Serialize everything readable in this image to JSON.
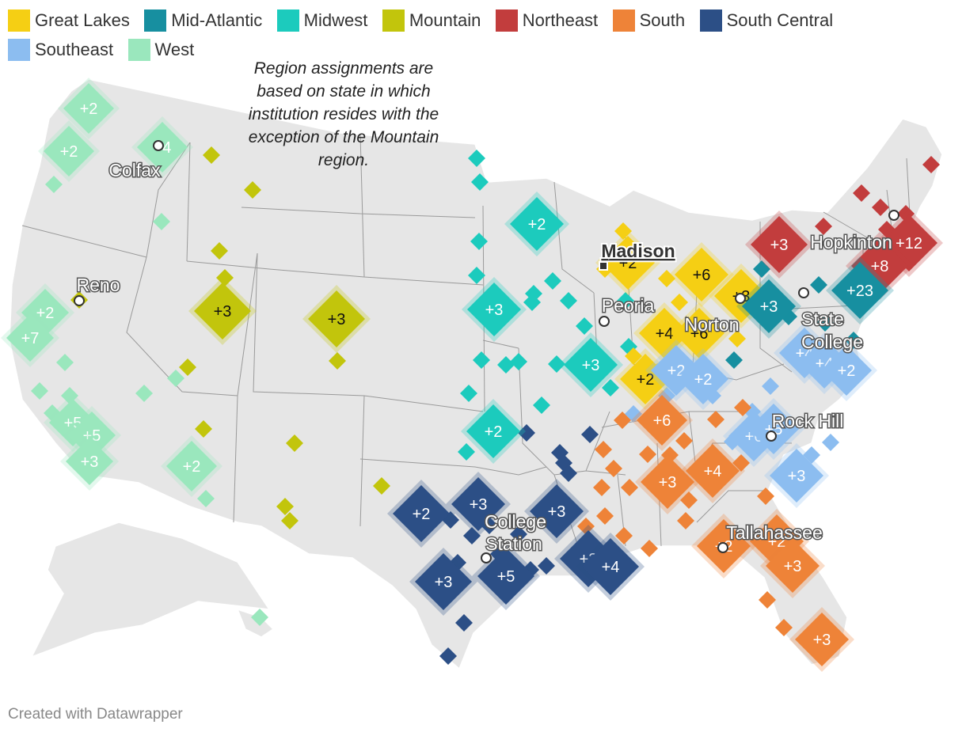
{
  "legend": [
    {
      "label": "Great Lakes",
      "color": "#f5cf14"
    },
    {
      "label": "Mid-Atlantic",
      "color": "#178fa0"
    },
    {
      "label": "Midwest",
      "color": "#1ccbbd"
    },
    {
      "label": "Mountain",
      "color": "#c2c50c"
    },
    {
      "label": "Northeast",
      "color": "#c23d3d"
    },
    {
      "label": "South",
      "color": "#ee8338"
    },
    {
      "label": "South Central",
      "color": "#2c4f86"
    },
    {
      "label": "Southeast",
      "color": "#8cbdf0"
    },
    {
      "label": "West",
      "color": "#9ae7bd"
    }
  ],
  "note": "Region assignments are based on state in which institution resides with the exception of the Mountain region.",
  "footer": "Created with Datawrapper",
  "cities": [
    "Colfax",
    "Reno",
    "Madison",
    "Peoria",
    "Norton",
    "Hopkinton",
    "State College",
    "Rock Hill",
    "Tallahassee",
    "College Station"
  ],
  "clusters": [
    {
      "region": "West",
      "label": "+2"
    },
    {
      "region": "West",
      "label": "+2"
    },
    {
      "region": "West",
      "label": "+4"
    },
    {
      "region": "West",
      "label": "+2"
    },
    {
      "region": "West",
      "label": "+7"
    },
    {
      "region": "West",
      "label": "+5"
    },
    {
      "region": "West",
      "label": "+5"
    },
    {
      "region": "West",
      "label": "+3"
    },
    {
      "region": "West",
      "label": "+2"
    },
    {
      "region": "Mountain",
      "label": "+3"
    },
    {
      "region": "Mountain",
      "label": "+3"
    },
    {
      "region": "Midwest",
      "label": "+2"
    },
    {
      "region": "Midwest",
      "label": "+3"
    },
    {
      "region": "Midwest",
      "label": "+3"
    },
    {
      "region": "Midwest",
      "label": "+2"
    },
    {
      "region": "Great Lakes",
      "label": "+2"
    },
    {
      "region": "Great Lakes",
      "label": "+6"
    },
    {
      "region": "Great Lakes",
      "label": "+3"
    },
    {
      "region": "Great Lakes",
      "label": "+4"
    },
    {
      "region": "Great Lakes",
      "label": "+6"
    },
    {
      "region": "Great Lakes",
      "label": "+2"
    },
    {
      "region": "Northeast",
      "label": "+3"
    },
    {
      "region": "Northeast",
      "label": "+12"
    },
    {
      "region": "Northeast",
      "label": "+8"
    },
    {
      "region": "Mid-Atlantic",
      "label": "+3"
    },
    {
      "region": "Mid-Atlantic",
      "label": "+23"
    },
    {
      "region": "Southeast",
      "label": "+2"
    },
    {
      "region": "Southeast",
      "label": "+2"
    },
    {
      "region": "Southeast",
      "label": "+4"
    },
    {
      "region": "Southeast",
      "label": "+4"
    },
    {
      "region": "Southeast",
      "label": "+2"
    },
    {
      "region": "Southeast",
      "label": "+6"
    },
    {
      "region": "Southeast",
      "label": "+5"
    },
    {
      "region": "Southeast",
      "label": "+3"
    },
    {
      "region": "South",
      "label": "+6"
    },
    {
      "region": "South",
      "label": "+3"
    },
    {
      "region": "South",
      "label": "+4"
    },
    {
      "region": "South",
      "label": "+2"
    },
    {
      "region": "South",
      "label": "+2"
    },
    {
      "region": "South",
      "label": "+3"
    },
    {
      "region": "South",
      "label": "+3"
    },
    {
      "region": "South Central",
      "label": "+2"
    },
    {
      "region": "South Central",
      "label": "+3"
    },
    {
      "region": "South Central",
      "label": "+3"
    },
    {
      "region": "South Central",
      "label": "+3"
    },
    {
      "region": "South Central",
      "label": "+4"
    },
    {
      "region": "South Central",
      "label": "+3"
    },
    {
      "region": "South Central",
      "label": "+5"
    }
  ]
}
